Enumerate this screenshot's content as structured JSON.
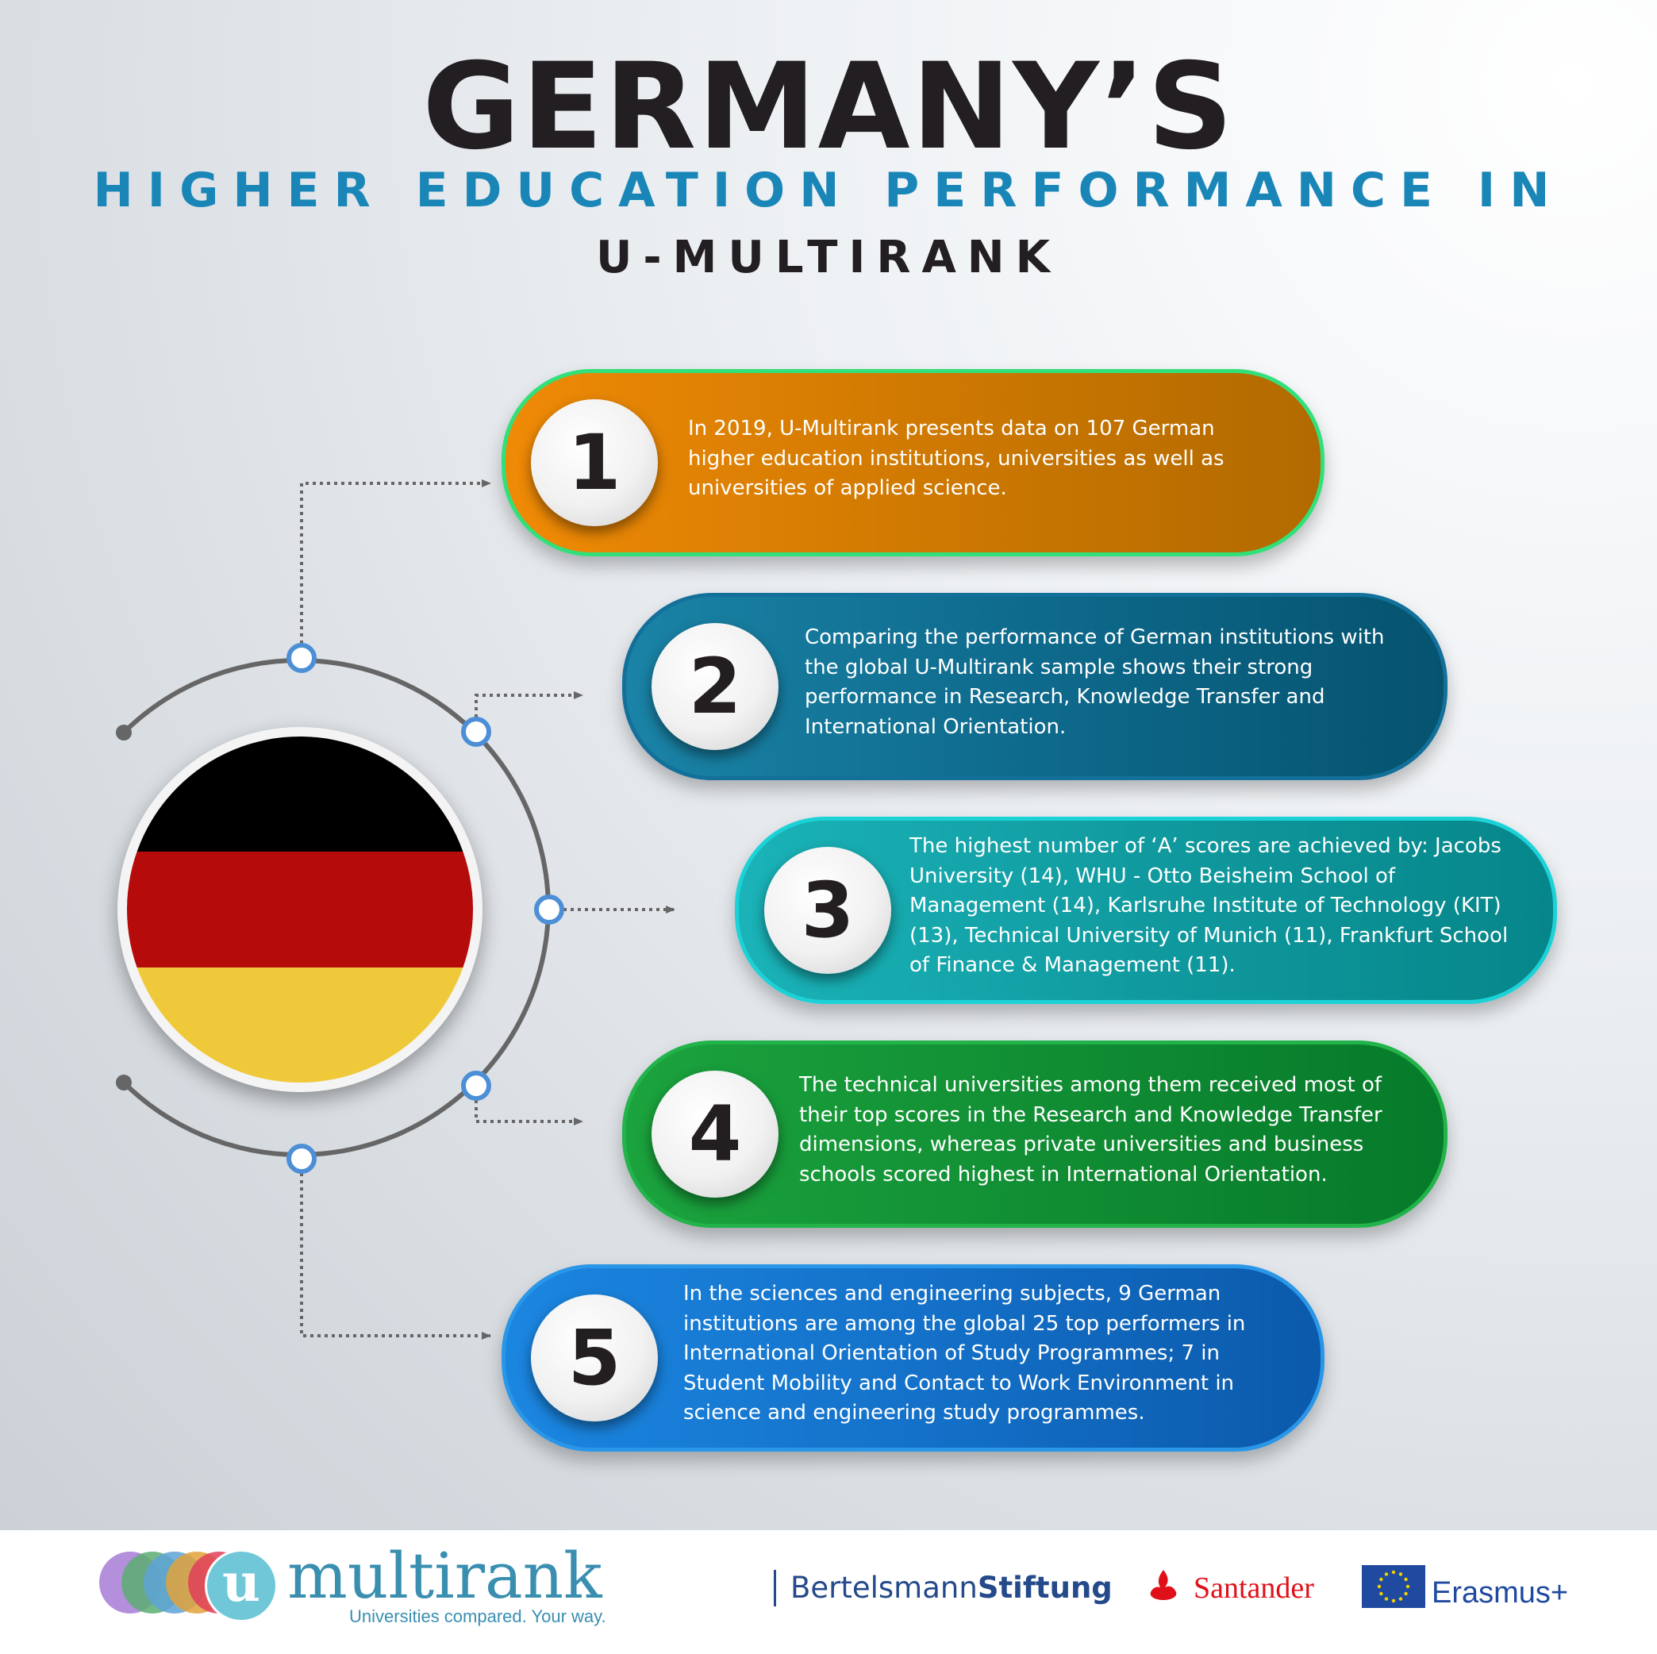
{
  "header": {
    "title": "GERMANY’S",
    "subtitle": "HIGHER EDUCATION PERFORMANCE IN",
    "subtitle2": "U-MULTIRANK"
  },
  "flag": {
    "country": "Germany",
    "colors": [
      "#000000",
      "#b50b0b",
      "#f0c93a"
    ]
  },
  "items": [
    {
      "number": "1",
      "color": "#ef8a06",
      "lines": [
        "In 2019, U-Multirank presents data on 107 German",
        "higher education institutions, universities as well as",
        "universities of applied science."
      ]
    },
    {
      "number": "2",
      "color": "#0e6a8c",
      "lines": [
        "Comparing the performance of German institutions with",
        "the global U-Multirank sample shows their strong",
        "performance in Research, Knowledge Transfer and",
        "International Orientation."
      ]
    },
    {
      "number": "3",
      "color": "#109a9f",
      "lines": [
        "The highest number of ‘A’ scores are achieved by: Jacobs",
        "University (14), WHU - Otto Beisheim School of",
        "Management (14), Karlsruhe Institute of Technology (KIT)",
        "(13), Technical University of Munich (11), Frankfurt School",
        "of Finance & Management (11)."
      ]
    },
    {
      "number": "4",
      "color": "#118e34",
      "lines": [
        "The technical universities among them received most of",
        "their top scores in the Research and Knowledge Transfer",
        "dimensions, whereas private universities and business",
        "schools scored highest in International Orientation."
      ]
    },
    {
      "number": "5",
      "color": "#1471c9",
      "lines": [
        "In the sciences and engineering subjects, 9 German",
        "institutions are among the global 25 top performers in",
        "International Orientation of Study Programmes; 7 in",
        "Student Mobility and Contact to Work Environment in",
        "science and engineering study programmes."
      ]
    }
  ],
  "footer": {
    "logo_letter": "u",
    "logo_word": "multirank",
    "tagline": "Universities compared. Your way.",
    "partner1_regular": "Bertelsmann",
    "partner1_bold": "Stiftung",
    "partner2": "Santander",
    "partner3": "Erasmus+"
  }
}
